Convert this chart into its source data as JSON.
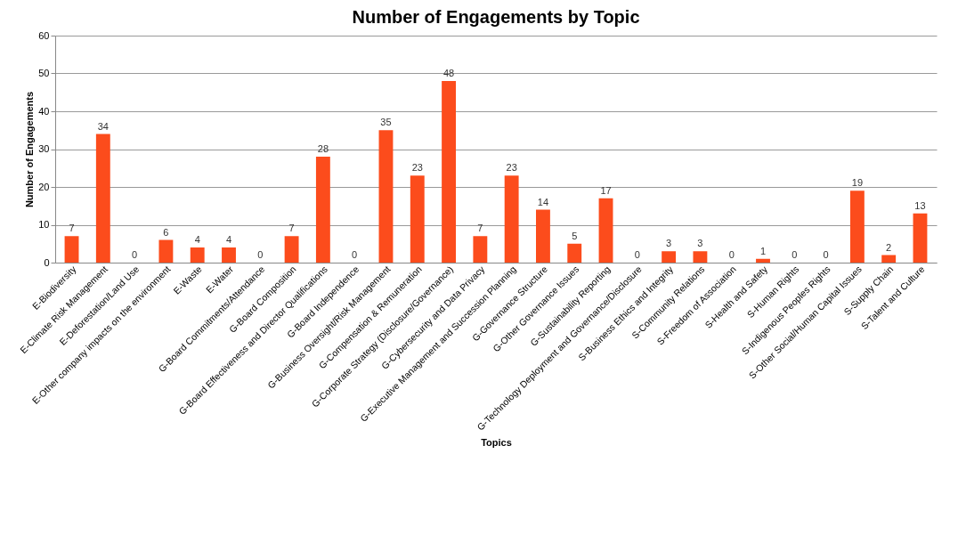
{
  "chart_data": {
    "type": "bar",
    "title": "Number of Engagements by Topic",
    "xlabel": "Topics",
    "ylabel": "Number of Engagements",
    "categories": [
      "E-Biodiversity",
      "E-Climate Risk Management",
      "E-Deforestation/Land Use",
      "E-Other company impacts on the environment",
      "E-Waste",
      "E-Water",
      "G-Board Commitments/Attendance",
      "G-Board Composition",
      "G-Board Effectiveness and Director Qualifications",
      "G-Board Independence",
      "G-Business Oversight/Risk Management",
      "G-Compensation & Remuneration",
      "G-Corporate Strategy (Disclosure/Governance)",
      "G-Cybersecurity and Data Privacy",
      "G-Executive Management and Succession Planning",
      "G-Governance Structure",
      "G-Other Governance Issues",
      "G-Sustainability Reporting",
      "G-Technology Deployment and Governance/Disclosure",
      "S-Business Ethics and Integrity",
      "S-Community Relations",
      "S-Freedom of Association",
      "S-Health and Safety",
      "S-Human Rights",
      "S-Indigenous Peoples Rights",
      "S-Other Social/Human Capital Issues",
      "S-Supply Chain",
      "S-Talent and Culture"
    ],
    "values": [
      7,
      34,
      0,
      6,
      4,
      4,
      0,
      7,
      28,
      0,
      35,
      23,
      48,
      7,
      23,
      14,
      5,
      17,
      0,
      3,
      3,
      0,
      1,
      0,
      0,
      19,
      2,
      13
    ],
    "color": "#fc4c1c",
    "ylim": [
      0,
      60
    ],
    "yticks": [
      0,
      10,
      20,
      30,
      40,
      50,
      60
    ],
    "grid": "y",
    "data_labels": true
  }
}
